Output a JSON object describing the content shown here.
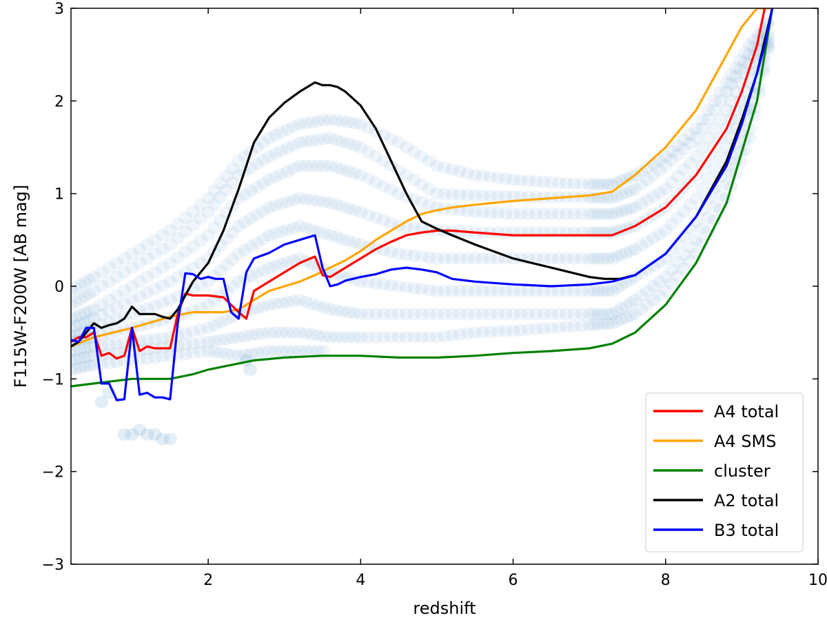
{
  "chart_data": {
    "type": "line",
    "xlabel": "redshift",
    "ylabel": "F115W-F200W [AB mag]",
    "xlim": [
      0.2,
      10
    ],
    "ylim": [
      -3,
      3
    ],
    "xticks": [
      2,
      4,
      6,
      8,
      10
    ],
    "yticks": [
      -3,
      -2,
      -1,
      0,
      1,
      2,
      3
    ],
    "xtick_labels": [
      "2",
      "4",
      "6",
      "8",
      "10"
    ],
    "ytick_labels": [
      "−3",
      "−2",
      "−1",
      "0",
      "1",
      "2",
      "3"
    ],
    "legend_position": "lower-right",
    "background_tracks": {
      "color": "#1f77b4",
      "description": "model color tracks",
      "tracks": [
        {
          "x": [
            0.2,
            0.5,
            1.0,
            1.5,
            2.0,
            2.4,
            2.8,
            3.2,
            3.6,
            4.0,
            4.5,
            5.0,
            5.5,
            6.0,
            6.5,
            7.0,
            7.3,
            7.6,
            8.0,
            8.4,
            8.8,
            9.1,
            9.4
          ],
          "y": [
            -0.05,
            0.1,
            0.35,
            0.6,
            0.95,
            1.35,
            1.6,
            1.75,
            1.8,
            1.75,
            1.55,
            1.3,
            1.2,
            1.15,
            1.12,
            1.1,
            1.1,
            1.2,
            1.4,
            1.7,
            2.2,
            2.6,
            2.9
          ]
        },
        {
          "x": [
            0.2,
            0.5,
            1.0,
            1.5,
            2.0,
            2.4,
            2.8,
            3.2,
            3.6,
            4.0,
            4.5,
            5.0,
            5.5,
            6.0,
            6.5,
            7.0,
            7.3,
            7.6,
            8.0,
            8.4,
            8.8,
            9.1,
            9.4
          ],
          "y": [
            -0.2,
            -0.05,
            0.2,
            0.45,
            0.8,
            1.2,
            1.4,
            1.55,
            1.6,
            1.5,
            1.25,
            1.0,
            0.98,
            0.97,
            0.96,
            0.96,
            0.95,
            1.05,
            1.3,
            1.6,
            2.1,
            2.5,
            2.9
          ]
        },
        {
          "x": [
            0.2,
            0.5,
            1.0,
            1.5,
            2.0,
            2.4,
            2.8,
            3.2,
            3.6,
            4.0,
            4.5,
            5.0,
            5.5,
            6.0,
            6.5,
            7.0,
            7.3,
            7.6,
            8.0,
            8.4,
            8.8,
            9.1,
            9.4
          ],
          "y": [
            -0.35,
            -0.25,
            0.0,
            0.25,
            0.55,
            0.95,
            1.15,
            1.3,
            1.3,
            1.2,
            1.0,
            0.85,
            0.8,
            0.78,
            0.78,
            0.78,
            0.78,
            0.85,
            1.05,
            1.4,
            1.9,
            2.4,
            2.8
          ]
        },
        {
          "x": [
            0.2,
            0.5,
            1.0,
            1.5,
            2.0,
            2.4,
            2.8,
            3.2,
            3.6,
            4.0,
            4.5,
            5.0,
            5.5,
            6.0,
            6.5,
            7.0,
            7.3,
            7.6,
            8.0,
            8.4,
            8.8,
            9.1,
            9.4
          ],
          "y": [
            -0.45,
            -0.35,
            -0.15,
            0.05,
            0.3,
            0.65,
            0.85,
            0.95,
            0.9,
            0.8,
            0.65,
            0.6,
            0.58,
            0.58,
            0.58,
            0.58,
            0.58,
            0.65,
            0.85,
            1.2,
            1.7,
            2.2,
            2.8
          ]
        },
        {
          "x": [
            0.2,
            0.5,
            1.0,
            1.5,
            2.0,
            2.4,
            2.8,
            3.2,
            3.6,
            4.0,
            4.5,
            5.0,
            5.5,
            6.0,
            6.5,
            7.0,
            7.3,
            7.6,
            8.0,
            8.4,
            8.8,
            9.1,
            9.4
          ],
          "y": [
            -0.55,
            -0.45,
            -0.3,
            -0.15,
            0.05,
            0.35,
            0.55,
            0.65,
            0.55,
            0.45,
            0.35,
            0.3,
            0.3,
            0.3,
            0.3,
            0.3,
            0.3,
            0.4,
            0.6,
            0.95,
            1.5,
            2.0,
            2.8
          ]
        },
        {
          "x": [
            0.2,
            0.5,
            1.0,
            1.5,
            2.0,
            2.4,
            2.8,
            3.2,
            3.6,
            4.0,
            4.5,
            5.0,
            5.5,
            6.0,
            6.5,
            7.0,
            7.3,
            7.6,
            8.0,
            8.4,
            8.8,
            9.1,
            9.4
          ],
          "y": [
            -0.6,
            -0.55,
            -0.45,
            -0.35,
            -0.2,
            0.05,
            0.2,
            0.3,
            0.15,
            0.05,
            0.0,
            -0.05,
            -0.05,
            -0.05,
            -0.05,
            -0.05,
            -0.05,
            0.1,
            0.3,
            0.7,
            1.3,
            1.9,
            2.8
          ]
        },
        {
          "x": [
            0.2,
            0.5,
            1.0,
            1.5,
            2.0,
            2.4,
            2.8,
            3.2,
            3.6,
            4.0,
            4.5,
            5.0,
            5.5,
            6.0,
            6.5,
            7.0,
            7.3,
            7.6,
            8.0,
            8.4,
            8.8,
            9.1,
            9.4
          ],
          "y": [
            -0.7,
            -0.65,
            -0.6,
            -0.55,
            -0.45,
            -0.3,
            -0.2,
            -0.15,
            -0.25,
            -0.3,
            -0.3,
            -0.3,
            -0.3,
            -0.3,
            -0.3,
            -0.3,
            -0.3,
            -0.15,
            0.1,
            0.5,
            1.1,
            1.7,
            2.8
          ]
        },
        {
          "x": [
            0.2,
            0.5,
            1.0,
            1.5,
            2.0,
            2.4,
            2.8,
            3.2,
            3.6,
            4.0,
            4.5,
            5.0,
            5.5,
            6.0,
            6.5,
            7.0,
            7.3,
            7.6,
            8.0,
            8.4,
            8.8,
            9.1,
            9.4
          ],
          "y": [
            -0.8,
            -0.75,
            -0.7,
            -0.65,
            -0.6,
            -0.55,
            -0.5,
            -0.5,
            -0.55,
            -0.55,
            -0.55,
            -0.55,
            -0.5,
            -0.48,
            -0.45,
            -0.42,
            -0.4,
            -0.3,
            -0.05,
            0.35,
            0.95,
            1.6,
            2.8
          ]
        },
        {
          "x": [
            0.2,
            0.5,
            1.0,
            1.5,
            2.0,
            2.4,
            2.8,
            3.2,
            3.6
          ],
          "y": [
            -0.9,
            -0.85,
            -0.8,
            -0.75,
            -0.7,
            -0.75,
            -0.7,
            -0.7,
            -0.7
          ]
        }
      ],
      "scatter_extra": {
        "x": [
          0.6,
          0.7,
          0.9,
          1.0,
          1.1,
          1.2,
          1.3,
          1.4,
          1.5,
          2.5,
          2.55
        ],
        "y": [
          -1.25,
          -1.15,
          -1.6,
          -1.6,
          -1.55,
          -1.6,
          -1.6,
          -1.65,
          -1.65,
          -0.8,
          -0.9
        ]
      }
    },
    "series": [
      {
        "name": "B3 total",
        "legend_label": "B3 total",
        "color": "#0000ff",
        "x": [
          0.2,
          0.3,
          0.4,
          0.5,
          0.6,
          0.65,
          0.7,
          0.8,
          0.9,
          1.0,
          1.1,
          1.2,
          1.3,
          1.4,
          1.5,
          1.6,
          1.7,
          1.8,
          1.9,
          2.0,
          2.1,
          2.2,
          2.3,
          2.4,
          2.5,
          2.6,
          2.8,
          3.0,
          3.2,
          3.4,
          3.5,
          3.6,
          3.7,
          3.8,
          4.0,
          4.2,
          4.4,
          4.6,
          4.8,
          5.0,
          5.2,
          5.5,
          6.0,
          6.5,
          7.0,
          7.3,
          7.6,
          8.0,
          8.4,
          8.8,
          9.0,
          9.2,
          9.3,
          9.4
        ],
        "y": [
          -0.58,
          -0.6,
          -0.45,
          -0.45,
          -1.05,
          -1.05,
          -1.05,
          -1.23,
          -1.22,
          -0.45,
          -1.17,
          -1.15,
          -1.2,
          -1.2,
          -1.22,
          -0.4,
          0.14,
          0.13,
          0.08,
          0.1,
          0.08,
          0.08,
          -0.28,
          -0.35,
          0.15,
          0.3,
          0.36,
          0.45,
          0.5,
          0.55,
          0.2,
          0.0,
          0.02,
          0.06,
          0.1,
          0.13,
          0.18,
          0.2,
          0.18,
          0.15,
          0.08,
          0.05,
          0.02,
          0.0,
          0.02,
          0.05,
          0.12,
          0.35,
          0.75,
          1.3,
          1.75,
          2.3,
          2.6,
          3.0
        ]
      },
      {
        "name": "A2 total",
        "legend_label": "A2 total",
        "color": "#000000",
        "x": [
          0.2,
          0.3,
          0.4,
          0.5,
          0.6,
          0.7,
          0.8,
          0.9,
          1.0,
          1.1,
          1.2,
          1.3,
          1.4,
          1.5,
          1.6,
          1.7,
          1.8,
          2.0,
          2.2,
          2.4,
          2.6,
          2.8,
          3.0,
          3.2,
          3.4,
          3.5,
          3.6,
          3.7,
          3.8,
          4.0,
          4.2,
          4.4,
          4.6,
          4.8,
          5.0,
          5.2,
          5.5,
          6.0,
          6.5,
          7.0,
          7.2,
          7.4,
          7.6,
          8.0,
          8.4,
          8.8,
          9.0,
          9.2,
          9.4
        ],
        "y": [
          -0.65,
          -0.6,
          -0.5,
          -0.4,
          -0.45,
          -0.42,
          -0.4,
          -0.35,
          -0.22,
          -0.3,
          -0.3,
          -0.3,
          -0.33,
          -0.35,
          -0.25,
          -0.1,
          0.05,
          0.25,
          0.6,
          1.05,
          1.55,
          1.82,
          1.98,
          2.1,
          2.2,
          2.17,
          2.17,
          2.15,
          2.1,
          1.95,
          1.7,
          1.35,
          1.0,
          0.7,
          0.62,
          0.55,
          0.45,
          0.3,
          0.2,
          0.1,
          0.08,
          0.08,
          0.12,
          0.35,
          0.75,
          1.35,
          1.8,
          2.3,
          3.0
        ]
      },
      {
        "name": "A4 total",
        "legend_label": "A4 total",
        "color": "#ff0000",
        "x": [
          0.2,
          0.3,
          0.4,
          0.5,
          0.6,
          0.7,
          0.8,
          0.9,
          1.0,
          1.1,
          1.2,
          1.3,
          1.4,
          1.5,
          1.6,
          1.7,
          1.8,
          2.0,
          2.2,
          2.4,
          2.5,
          2.6,
          2.8,
          3.0,
          3.2,
          3.4,
          3.5,
          3.6,
          3.8,
          4.0,
          4.2,
          4.4,
          4.6,
          4.8,
          5.0,
          5.2,
          5.5,
          6.0,
          6.5,
          7.0,
          7.3,
          7.6,
          8.0,
          8.4,
          8.8,
          9.0,
          9.2,
          9.3
        ],
        "y": [
          -0.6,
          -0.55,
          -0.55,
          -0.5,
          -0.75,
          -0.72,
          -0.78,
          -0.75,
          -0.45,
          -0.7,
          -0.65,
          -0.67,
          -0.67,
          -0.67,
          -0.3,
          -0.08,
          -0.1,
          -0.1,
          -0.12,
          -0.28,
          -0.35,
          -0.05,
          0.05,
          0.15,
          0.25,
          0.32,
          0.12,
          0.1,
          0.2,
          0.3,
          0.4,
          0.48,
          0.55,
          0.58,
          0.6,
          0.6,
          0.58,
          0.55,
          0.55,
          0.55,
          0.55,
          0.65,
          0.85,
          1.2,
          1.7,
          2.1,
          2.6,
          3.0
        ]
      },
      {
        "name": "A4 SMS",
        "legend_label": "A4 SMS",
        "color": "#ffa500",
        "x": [
          0.2,
          0.5,
          1.0,
          1.5,
          1.8,
          2.0,
          2.2,
          2.4,
          2.6,
          2.8,
          3.0,
          3.2,
          3.4,
          3.6,
          3.8,
          4.0,
          4.2,
          4.4,
          4.6,
          4.8,
          5.0,
          5.2,
          5.5,
          6.0,
          6.5,
          7.0,
          7.3,
          7.6,
          8.0,
          8.4,
          8.8,
          9.0,
          9.2,
          9.4
        ],
        "y": [
          -0.65,
          -0.55,
          -0.45,
          -0.33,
          -0.28,
          -0.28,
          -0.28,
          -0.25,
          -0.15,
          -0.05,
          0.0,
          0.05,
          0.12,
          0.2,
          0.28,
          0.38,
          0.5,
          0.6,
          0.7,
          0.78,
          0.82,
          0.85,
          0.88,
          0.92,
          0.95,
          0.98,
          1.02,
          1.2,
          1.5,
          1.9,
          2.5,
          2.8,
          3.0,
          3.0
        ]
      },
      {
        "name": "cluster",
        "legend_label": "cluster",
        "color": "#008000",
        "x": [
          0.2,
          0.5,
          1.0,
          1.5,
          1.8,
          2.0,
          2.3,
          2.6,
          3.0,
          3.5,
          4.0,
          4.5,
          5.0,
          5.5,
          6.0,
          6.5,
          7.0,
          7.3,
          7.6,
          8.0,
          8.4,
          8.8,
          9.0,
          9.2,
          9.4
        ],
        "y": [
          -1.08,
          -1.05,
          -1.0,
          -1.0,
          -0.95,
          -0.9,
          -0.85,
          -0.8,
          -0.77,
          -0.75,
          -0.75,
          -0.77,
          -0.77,
          -0.75,
          -0.72,
          -0.7,
          -0.67,
          -0.62,
          -0.5,
          -0.2,
          0.25,
          0.9,
          1.45,
          2.0,
          3.0
        ]
      }
    ],
    "legend_order": [
      "A4 total",
      "A4 SMS",
      "cluster",
      "A2 total",
      "B3 total"
    ]
  }
}
